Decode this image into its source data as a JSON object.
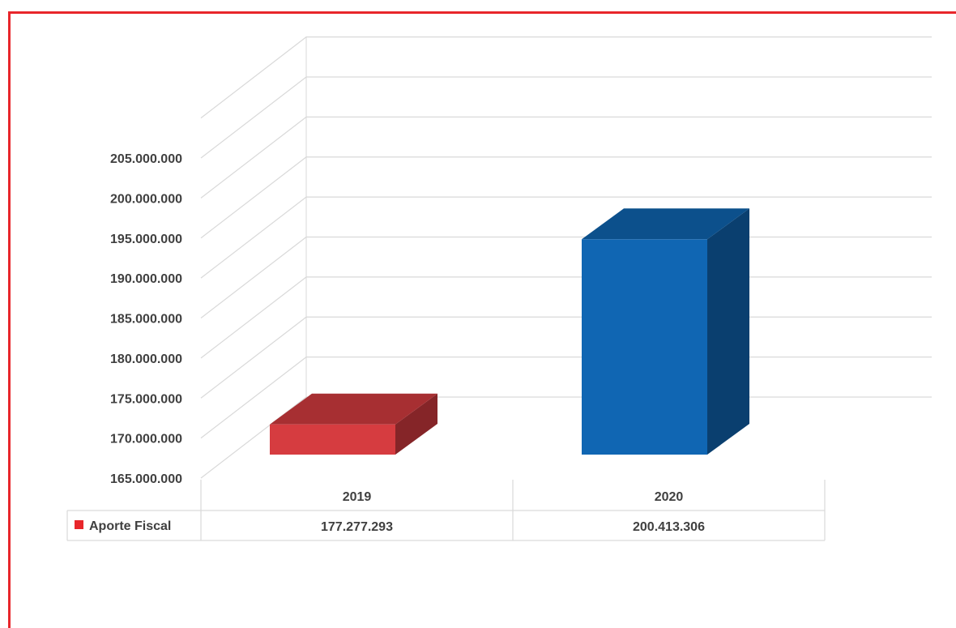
{
  "chart_data": {
    "type": "bar",
    "categories": [
      "2019",
      "2020"
    ],
    "series": [
      {
        "name": "Aporte Fiscal",
        "values": [
          177277293,
          200413306
        ],
        "value_labels": [
          "177.277.293",
          "200.413.306"
        ],
        "colors": [
          "#d63c40",
          "#1066b3"
        ]
      }
    ],
    "y_ticks": [
      "165.000.000",
      "170.000.000",
      "175.000.000",
      "180.000.000",
      "185.000.000",
      "190.000.000",
      "195.000.000",
      "200.000.000",
      "205.000.000"
    ],
    "ylim": [
      165000000,
      205000000
    ],
    "grid": true,
    "style": "3d-column-with-data-table",
    "legend_key_color": "#e8262b",
    "frame_color": "#e8262b"
  }
}
